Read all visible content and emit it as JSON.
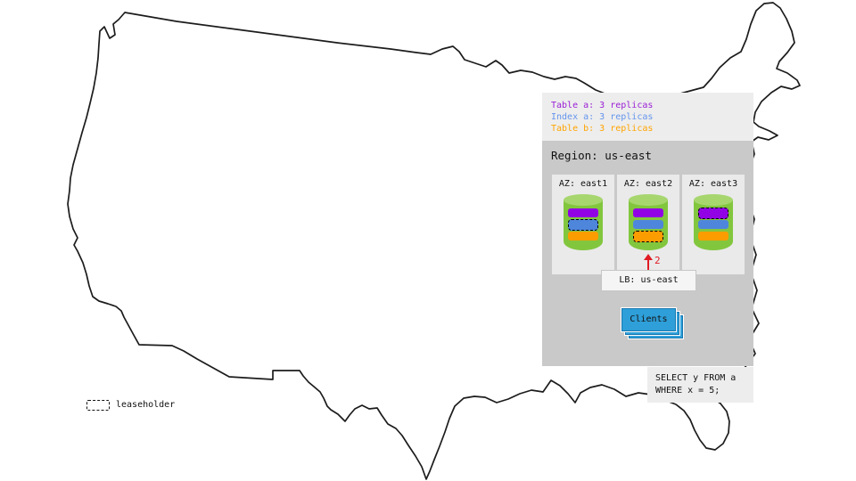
{
  "legend": {
    "items": [
      {
        "name": "table-a",
        "label": "Table a: 3 replicas",
        "color": "#9b21d6"
      },
      {
        "name": "index-a",
        "label": "Index a: 3 replicas",
        "color": "#6495ed"
      },
      {
        "name": "table-b",
        "label": "Table b: 3 replicas",
        "color": "#ffa500"
      }
    ]
  },
  "region": {
    "title": "Region: us-east",
    "azs": [
      {
        "label": "AZ: east1",
        "replicas": [
          {
            "name": "table-a",
            "color": "#9103e4",
            "leaseholder": false
          },
          {
            "name": "index-a",
            "color": "#4e86db",
            "leaseholder": true
          },
          {
            "name": "table-b",
            "color": "#fb9d00",
            "leaseholder": false
          }
        ]
      },
      {
        "label": "AZ: east2",
        "replicas": [
          {
            "name": "table-a",
            "color": "#9103e4",
            "leaseholder": false
          },
          {
            "name": "index-a",
            "color": "#4e86db",
            "leaseholder": false
          },
          {
            "name": "table-b",
            "color": "#fb9d00",
            "leaseholder": true
          }
        ]
      },
      {
        "label": "AZ: east3",
        "replicas": [
          {
            "name": "table-a",
            "color": "#9103e4",
            "leaseholder": true
          },
          {
            "name": "index-a",
            "color": "#4e86db",
            "leaseholder": false
          },
          {
            "name": "table-b",
            "color": "#fb9d00",
            "leaseholder": false
          }
        ]
      }
    ],
    "load_balancer": {
      "label": "LB: us-east"
    },
    "clients": {
      "label": "Clients"
    },
    "arrow": {
      "label": "2",
      "color": "#e01b24"
    }
  },
  "query": {
    "lines": [
      "SELECT y FROM a",
      "WHERE x = 5;"
    ]
  },
  "map_key": {
    "label": "leaseholder"
  }
}
